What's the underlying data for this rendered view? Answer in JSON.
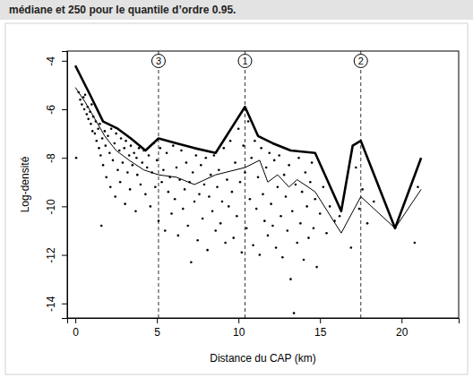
{
  "chart_data": {
    "type": "scatter",
    "caption": "médiane et 250 pour le quantile d’ordre 0.95.",
    "x_label": "Distance du CAP (km)",
    "y_label": "Log-densité",
    "xlim": [
      -0.5,
      23.5
    ],
    "ylim": [
      -14.6,
      -3.6
    ],
    "xticks": [
      0,
      5,
      10,
      15,
      20
    ],
    "yticks": [
      -14,
      -12,
      -10,
      -8,
      -6,
      -4
    ],
    "annotations": [
      {
        "x": 5.1,
        "label": "3"
      },
      {
        "x": 10.4,
        "label": "1"
      },
      {
        "x": 17.5,
        "label": "2"
      }
    ],
    "series": [
      {
        "type": "scatter",
        "marker": "circle",
        "color": "#000000",
        "x": [
          0.05,
          0.2,
          0.3,
          0.4,
          0.5,
          0.55,
          0.6,
          0.7,
          0.75,
          0.8,
          0.9,
          0.95,
          1.0,
          1.05,
          1.1,
          1.2,
          1.25,
          1.3,
          1.4,
          1.45,
          1.5,
          1.55,
          1.6,
          1.65,
          1.7,
          1.8,
          1.85,
          1.9,
          2.0,
          2.1,
          2.15,
          2.2,
          2.3,
          2.4,
          2.45,
          2.5,
          2.6,
          2.7,
          2.75,
          2.8,
          2.9,
          3.0,
          3.05,
          3.1,
          3.2,
          3.3,
          3.35,
          3.4,
          3.5,
          3.6,
          3.7,
          3.75,
          3.8,
          3.9,
          4.0,
          4.1,
          4.2,
          4.3,
          4.4,
          4.5,
          4.6,
          4.7,
          4.8,
          4.9,
          5.0,
          5.1,
          5.2,
          5.3,
          5.4,
          5.5,
          5.6,
          5.7,
          5.8,
          5.9,
          6.0,
          6.1,
          6.2,
          6.3,
          6.4,
          6.5,
          6.6,
          6.7,
          6.8,
          6.9,
          7.0,
          7.1,
          7.2,
          7.3,
          7.4,
          7.5,
          7.6,
          7.7,
          7.8,
          7.9,
          8.0,
          8.1,
          8.2,
          8.3,
          8.4,
          8.5,
          8.6,
          8.7,
          8.8,
          8.9,
          9.0,
          9.1,
          9.2,
          9.3,
          9.4,
          9.5,
          9.6,
          9.7,
          9.8,
          9.9,
          10.0,
          10.1,
          10.2,
          10.3,
          10.4,
          10.5,
          10.6,
          10.7,
          10.8,
          10.9,
          11.0,
          11.1,
          11.2,
          11.3,
          11.4,
          11.5,
          11.6,
          11.7,
          11.8,
          11.9,
          12.0,
          12.1,
          12.2,
          12.3,
          12.4,
          12.5,
          12.6,
          12.7,
          12.8,
          12.9,
          13.0,
          13.1,
          13.2,
          13.3,
          13.4,
          13.5,
          13.6,
          13.7,
          13.8,
          13.9,
          14.0,
          14.1,
          14.2,
          14.3,
          14.4,
          14.5,
          14.6,
          14.7,
          14.8,
          15.0,
          15.2,
          15.4,
          15.6,
          15.9,
          16.2,
          16.9,
          17.2,
          17.4,
          17.6,
          17.9,
          18.3,
          19.6,
          20.8,
          21.0
        ],
        "values": [
          -8.0,
          -5.3,
          -5.6,
          -5.8,
          -5.5,
          -6.0,
          -5.4,
          -6.2,
          -5.9,
          -6.4,
          -6.1,
          -6.6,
          -5.8,
          -6.9,
          -6.3,
          -7.0,
          -6.5,
          -7.3,
          -6.8,
          -7.6,
          -6.6,
          -7.9,
          -10.8,
          -7.2,
          -8.3,
          -6.9,
          -7.5,
          -8.8,
          -7.1,
          -7.8,
          -9.2,
          -6.8,
          -8.1,
          -7.4,
          -9.6,
          -7.0,
          -8.5,
          -7.7,
          -9.0,
          -7.2,
          -8.2,
          -7.6,
          -9.9,
          -7.3,
          -8.6,
          -7.9,
          -9.3,
          -7.5,
          -8.3,
          -7.8,
          -10.2,
          -8.0,
          -8.7,
          -7.6,
          -9.1,
          -8.2,
          -7.7,
          -9.5,
          -8.4,
          -7.9,
          -10.0,
          -8.6,
          -7.4,
          -9.2,
          -8.1,
          -10.6,
          -7.6,
          -9.0,
          -8.5,
          -11.0,
          -7.8,
          -9.4,
          -8.8,
          -10.3,
          -7.5,
          -9.7,
          -8.4,
          -11.2,
          -8.9,
          -7.7,
          -10.1,
          -9.3,
          -8.2,
          -10.8,
          -9.0,
          -12.3,
          -8.6,
          -9.8,
          -7.9,
          -11.4,
          -9.5,
          -8.3,
          -10.5,
          -9.1,
          -8.0,
          -11.8,
          -9.6,
          -8.7,
          -10.2,
          -7.9,
          -11.0,
          -9.2,
          -8.5,
          -10.7,
          -9.8,
          -7.6,
          -11.5,
          -8.9,
          -10.0,
          -7.3,
          -9.4,
          -11.3,
          -8.2,
          -10.4,
          -6.8,
          -9.0,
          -11.9,
          -7.5,
          -8.6,
          -10.9,
          -6.5,
          -9.7,
          -8.0,
          -11.6,
          -7.3,
          -10.1,
          -8.8,
          -12.0,
          -7.6,
          -9.5,
          -10.6,
          -8.4,
          -11.2,
          -7.8,
          -9.9,
          -10.8,
          -8.1,
          -11.7,
          -9.2,
          -7.9,
          -10.4,
          -12.1,
          -8.7,
          -9.6,
          -11.0,
          -8.3,
          -13.0,
          -10.2,
          -14.4,
          -9.1,
          -11.5,
          -8.0,
          -10.7,
          -9.4,
          -12.2,
          -8.6,
          -10.0,
          -11.3,
          -9.0,
          -8.2,
          -10.9,
          -9.7,
          -12.5,
          -10.3,
          -9.2,
          -11.1,
          -10.0,
          -10.6,
          -10.4,
          -11.7,
          -8.4,
          -10.1,
          -9.3,
          -10.7,
          -9.8,
          -10.9,
          -11.5,
          -9.2
        ]
      },
      {
        "type": "line",
        "line_style": "bold",
        "color": "#000000",
        "x": [
          0,
          0.9,
          1.7,
          2.6,
          3.4,
          4.3,
          5.1,
          6.2,
          7.3,
          8.6,
          10.4,
          11.2,
          12.1,
          13.2,
          14.7,
          16.3,
          17.0,
          17.5,
          19.6,
          21.2
        ],
        "values": [
          -4.2,
          -5.4,
          -6.5,
          -6.8,
          -7.2,
          -7.7,
          -7.2,
          -7.4,
          -7.6,
          -7.8,
          -5.9,
          -7.1,
          -7.4,
          -7.7,
          -7.8,
          -10.2,
          -7.5,
          -7.3,
          -10.9,
          -8.0
        ]
      },
      {
        "type": "line",
        "line_style": "solid",
        "color": "#000000",
        "x": [
          0,
          0.6,
          1.2,
          1.8,
          2.5,
          3.3,
          4.2,
          5.1,
          6.2,
          7.3,
          8.6,
          10.4,
          11.3,
          11.8,
          12.4,
          13.1,
          13.6,
          14.7,
          16.3,
          17.5,
          19.6,
          21.2
        ],
        "values": [
          -5.1,
          -5.7,
          -6.4,
          -7.1,
          -7.7,
          -8.1,
          -8.5,
          -8.7,
          -8.8,
          -9.1,
          -8.7,
          -8.4,
          -8.1,
          -9.0,
          -8.7,
          -9.2,
          -8.9,
          -9.4,
          -11.1,
          -9.6,
          -10.9,
          -9.3
        ]
      }
    ]
  }
}
